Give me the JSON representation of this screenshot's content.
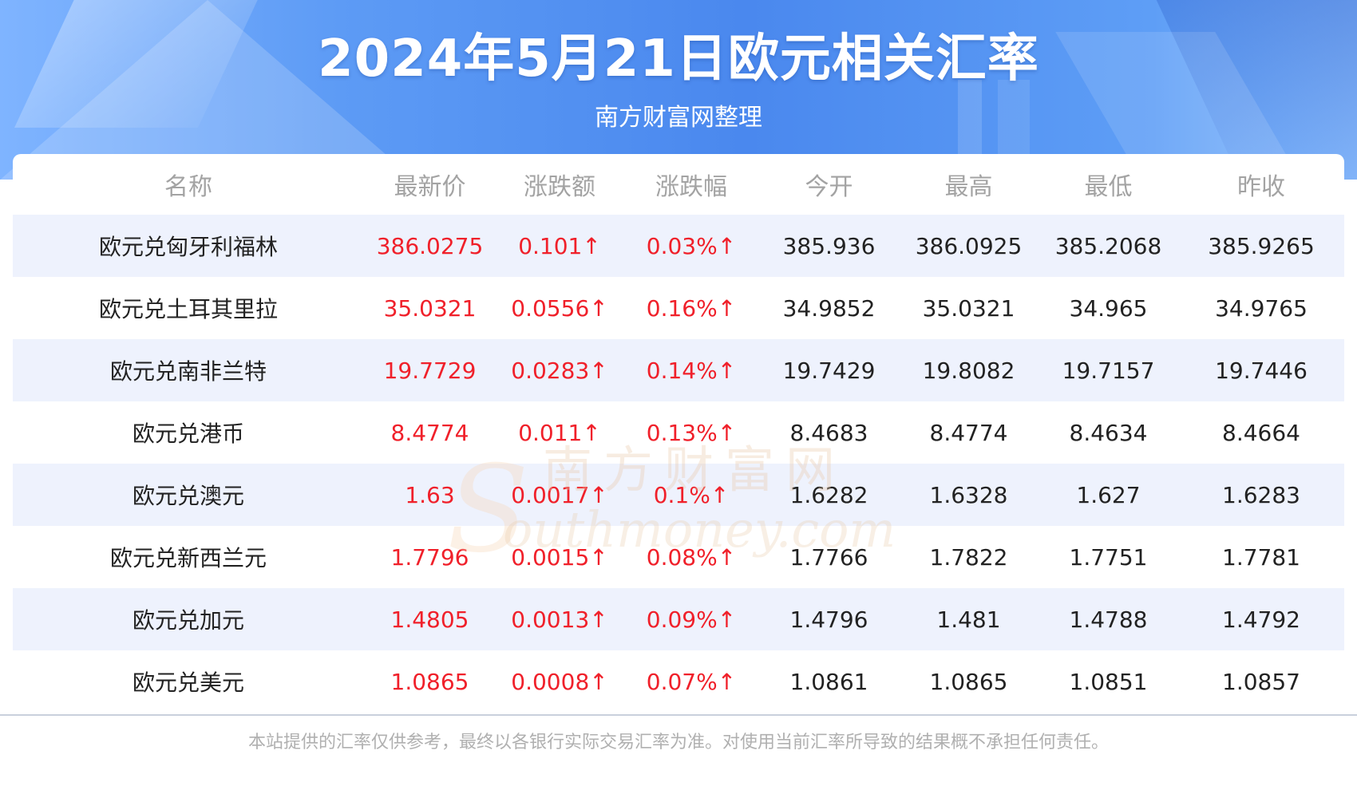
{
  "header": {
    "title": "2024年5月21日欧元相关汇率",
    "subtitle": "南方财富网整理"
  },
  "table": {
    "columns": [
      "名称",
      "最新价",
      "涨跌额",
      "涨跌幅",
      "今开",
      "最高",
      "最低",
      "昨收"
    ],
    "rows": [
      [
        "欧元兑匈牙利福林",
        "386.0275",
        "0.101↑",
        "0.03%↑",
        "385.936",
        "386.0925",
        "385.2068",
        "385.9265"
      ],
      [
        "欧元兑土耳其里拉",
        "35.0321",
        "0.0556↑",
        "0.16%↑",
        "34.9852",
        "35.0321",
        "34.965",
        "34.9765"
      ],
      [
        "欧元兑南非兰特",
        "19.7729",
        "0.0283↑",
        "0.14%↑",
        "19.7429",
        "19.8082",
        "19.7157",
        "19.7446"
      ],
      [
        "欧元兑港币",
        "8.4774",
        "0.011↑",
        "0.13%↑",
        "8.4683",
        "8.4774",
        "8.4634",
        "8.4664"
      ],
      [
        "欧元兑澳元",
        "1.63",
        "0.0017↑",
        "0.1%↑",
        "1.6282",
        "1.6328",
        "1.627",
        "1.6283"
      ],
      [
        "欧元兑新西兰元",
        "1.7796",
        "0.0015↑",
        "0.08%↑",
        "1.7766",
        "1.7822",
        "1.7751",
        "1.7781"
      ],
      [
        "欧元兑加元",
        "1.4805",
        "0.0013↑",
        "0.09%↑",
        "1.4796",
        "1.481",
        "1.4788",
        "1.4792"
      ],
      [
        "欧元兑美元",
        "1.0865",
        "0.0008↑",
        "0.07%↑",
        "1.0861",
        "1.0865",
        "1.0851",
        "1.0857"
      ]
    ]
  },
  "watermark": {
    "cn": "南方财富网",
    "en": "outhmoney.com",
    "s": "S"
  },
  "footer": "本站提供的汇率仅供参考，最终以各银行实际交易汇率为准。对使用当前汇率所导致的结果概不承担任何责任。",
  "colors": {
    "up": "#f0202a",
    "header_blue": "#4a88ee",
    "stripe": "#eef2fd"
  }
}
